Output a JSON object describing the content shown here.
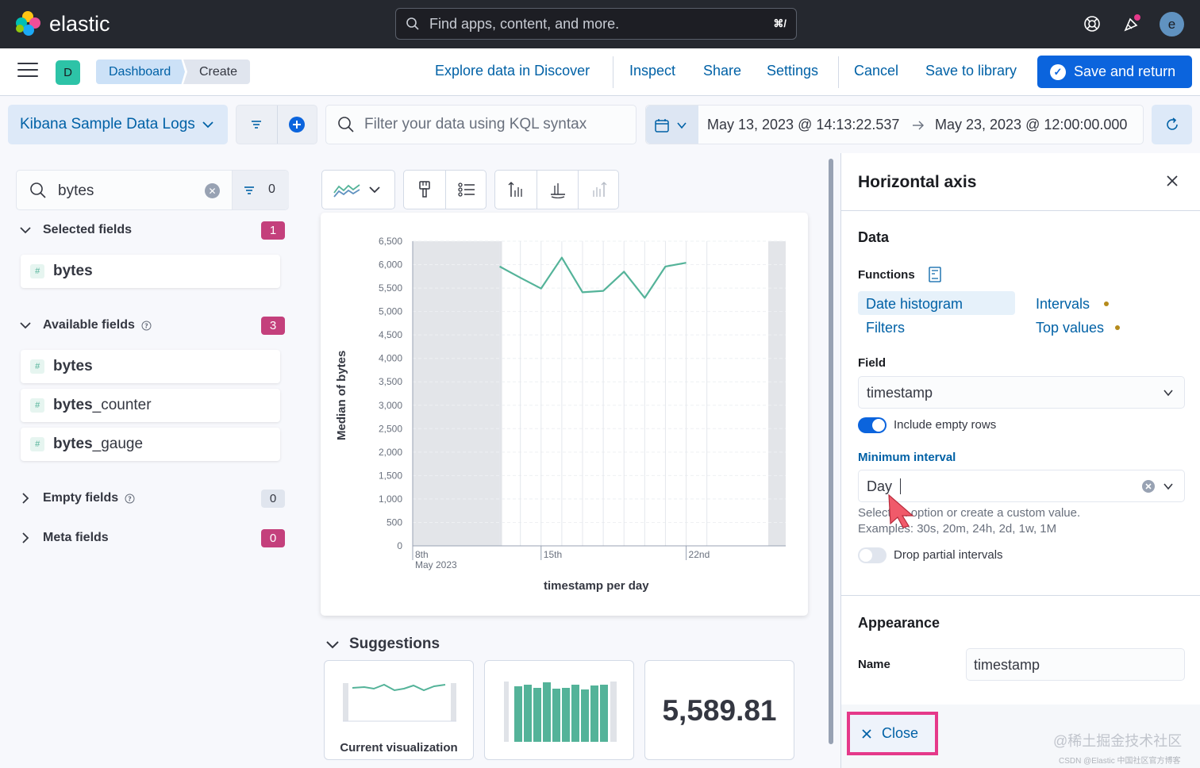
{
  "header": {
    "brand": "elastic",
    "search_placeholder": "Find apps, content, and more.",
    "search_shortcut": "⌘/",
    "user_initial": "e",
    "space_initial": "D"
  },
  "appbar": {
    "breadcrumbs": [
      "Dashboard",
      "Create"
    ],
    "links": {
      "explore": "Explore data in Discover",
      "inspect": "Inspect",
      "share": "Share",
      "settings": "Settings",
      "cancel": "Cancel",
      "save_library": "Save to library"
    },
    "save_return": "Save and return"
  },
  "querybar": {
    "data_view": "Kibana Sample Data Logs",
    "kql_placeholder": "Filter your data using KQL syntax",
    "date_start": "May 13, 2023 @ 14:13:22.537",
    "date_end": "May 23, 2023 @ 12:00:00.000"
  },
  "fieldlist": {
    "search_value": "bytes",
    "filter_count": "0",
    "selected": {
      "title": "Selected fields",
      "count": "1",
      "fields": [
        {
          "match": "bytes",
          "rest": ""
        }
      ]
    },
    "available": {
      "title": "Available fields",
      "count": "3",
      "fields": [
        {
          "match": "bytes",
          "rest": ""
        },
        {
          "match": "bytes",
          "rest": "_counter"
        },
        {
          "match": "bytes",
          "rest": "_gauge"
        }
      ]
    },
    "empty": {
      "title": "Empty fields",
      "count": "0"
    },
    "meta": {
      "title": "Meta fields",
      "count": "0"
    },
    "type_glyph": "#"
  },
  "chart_data": {
    "type": "line",
    "xlabel": "timestamp per day",
    "ylabel": "Median of bytes",
    "ylim": [
      0,
      6500
    ],
    "y_ticks": [
      "0",
      "500",
      "1,000",
      "1,500",
      "2,000",
      "2,500",
      "3,000",
      "3,500",
      "4,000",
      "4,500",
      "5,000",
      "5,500",
      "6,000",
      "6,500"
    ],
    "x_ticks": [
      {
        "label": "8th",
        "sub": "May 2023",
        "x": "2023-05-08"
      },
      {
        "label": "15th",
        "sub": "",
        "x": "2023-05-15"
      },
      {
        "label": "22nd",
        "sub": "",
        "x": "2023-05-22"
      }
    ],
    "x": [
      "2023-05-13",
      "2023-05-14",
      "2023-05-15",
      "2023-05-16",
      "2023-05-17",
      "2023-05-18",
      "2023-05-19",
      "2023-05-20",
      "2023-05-21",
      "2023-05-22",
      "2023-05-23"
    ],
    "values": [
      5960,
      5720,
      5490,
      6150,
      5410,
      5440,
      5850,
      5290,
      5960,
      6040,
      null
    ],
    "color": "#54b399",
    "grid": true
  },
  "suggestions": {
    "title": "Suggestions",
    "current_label": "Current visualization",
    "metric_value": "5,589.81"
  },
  "flyout": {
    "title": "Horizontal axis",
    "data_title": "Data",
    "functions_label": "Functions",
    "functions": {
      "date_histogram": "Date histogram",
      "intervals": "Intervals",
      "filters": "Filters",
      "top_values": "Top values"
    },
    "field_label": "Field",
    "field_value": "timestamp",
    "include_empty": "Include empty rows",
    "min_interval_label": "Minimum interval",
    "min_interval_value": "Day",
    "help_1": "Select an option or create a custom value.",
    "help_2": "Examples: 30s, 20m, 24h, 2d, 1w, 1M",
    "drop_partial": "Drop partial intervals",
    "appearance_title": "Appearance",
    "name_label": "Name",
    "name_value": "timestamp",
    "close": "Close"
  },
  "watermark": {
    "line1": "@稀土掘金技术社区",
    "line2": "CSDN @Elastic 中国社区官方博客"
  },
  "colors": {
    "accent": "#0b64dd",
    "link": "#0061a6",
    "series": "#54b399",
    "badge": "#c4407c",
    "highlight": "#e5398a"
  }
}
